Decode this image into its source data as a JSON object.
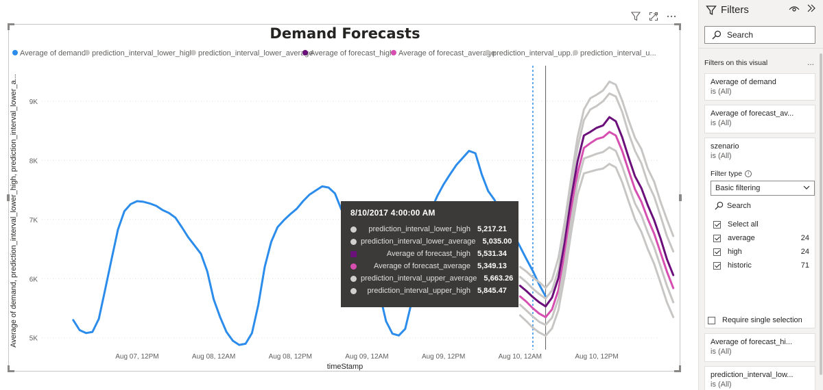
{
  "visual_header": {
    "filter_icon": "filter-icon",
    "focus_icon": "focus-mode-icon",
    "more_icon": "more-options-icon"
  },
  "chart_data": {
    "type": "line",
    "title": "Demand Forecasts",
    "xlabel": "timeStamp",
    "ylabel": "Average of demand, prediction_interval_lower_high, prediction_interval_lower_a...",
    "ylim": [
      4800,
      9600
    ],
    "y_ticks": [
      5000,
      6000,
      7000,
      8000,
      9000
    ],
    "y_tick_labels": [
      "5K",
      "6K",
      "7K",
      "8K",
      "9K"
    ],
    "x_tick_hours": [
      36,
      48,
      60,
      72,
      84,
      96,
      108
    ],
    "x_tick_labels": [
      "Aug 07, 12PM",
      "Aug 08, 12AM",
      "Aug 08, 12PM",
      "Aug 09, 12AM",
      "Aug 09, 12PM",
      "Aug 10, 12AM",
      "Aug 10, 12PM"
    ],
    "xlim_hours": [
      20,
      121
    ],
    "forecast_start_hour": 98,
    "hover_hour": 100,
    "legend": [
      {
        "name": "Average of demand",
        "color": "#2b8ceb"
      },
      {
        "name": "prediction_interval_lower_high",
        "color": "#c8c6c4"
      },
      {
        "name": "prediction_interval_lower_average",
        "color": "#c8c6c4"
      },
      {
        "name": "Average of forecast_high",
        "color": "#6b0f7a"
      },
      {
        "name": "Average of forecast_average",
        "color": "#d64fb0"
      },
      {
        "name": "prediction_interval_upp...",
        "color": "#c8c6c4"
      },
      {
        "name": "prediction_interval_u...",
        "color": "#c8c6c4"
      }
    ],
    "series": [
      {
        "name": "Average of demand",
        "color": "#2b8ceb",
        "width": 3,
        "x": [
          26,
          27,
          28,
          29,
          30,
          31,
          32,
          33,
          34,
          35,
          36,
          37,
          38,
          39,
          40,
          41,
          42,
          43,
          44,
          45,
          46,
          47,
          48,
          49,
          50,
          51,
          52,
          53,
          54,
          55,
          56,
          57,
          58,
          59,
          60,
          61,
          62,
          63,
          64,
          65,
          66,
          67,
          68,
          69,
          70,
          71,
          72,
          73,
          74,
          75,
          76,
          77,
          78,
          79,
          80,
          81,
          82,
          83,
          84,
          85,
          86,
          87,
          88,
          89,
          90,
          91,
          92,
          93,
          94,
          95,
          96,
          97,
          98,
          99,
          100
        ],
        "y": [
          5300,
          5130,
          5080,
          5100,
          5320,
          5820,
          6330,
          6830,
          7140,
          7260,
          7310,
          7300,
          7270,
          7230,
          7160,
          7110,
          7030,
          6870,
          6700,
          6560,
          6420,
          6120,
          5650,
          5350,
          5100,
          4950,
          4880,
          4900,
          5080,
          5560,
          6200,
          6620,
          6870,
          6990,
          7090,
          7180,
          7310,
          7420,
          7490,
          7560,
          7540,
          7440,
          7170,
          7000,
          6870,
          6680,
          6420,
          6140,
          5740,
          5280,
          5070,
          5040,
          5150,
          5600,
          6340,
          6850,
          7140,
          7390,
          7590,
          7760,
          7920,
          8040,
          8160,
          8120,
          7760,
          7480,
          7330,
          7130,
          6960,
          6750,
          6540,
          6330,
          6130,
          5900,
          5700
        ]
      },
      {
        "name": "prediction_interval_upper_high",
        "color": "#c8c6c4",
        "width": 3,
        "x": [
          96,
          97,
          98,
          99,
          100,
          101,
          102,
          103,
          104,
          105,
          106,
          107,
          108,
          109,
          110,
          111,
          112,
          113,
          114,
          115,
          116,
          117,
          118,
          119,
          120
        ],
        "y": [
          6200,
          6120,
          6020,
          5940,
          5845,
          5980,
          6350,
          6960,
          7700,
          8390,
          8860,
          9050,
          9110,
          9180,
          9330,
          9280,
          9010,
          8680,
          8380,
          8190,
          7860,
          7640,
          7300,
          7000,
          6720
        ]
      },
      {
        "name": "prediction_interval_upper_average",
        "color": "#c8c6c4",
        "width": 3,
        "x": [
          96,
          97,
          98,
          99,
          100,
          101,
          102,
          103,
          104,
          105,
          106,
          107,
          108,
          109,
          110,
          111,
          112,
          113,
          114,
          115,
          116,
          117,
          118,
          119,
          120
        ],
        "y": [
          6030,
          5940,
          5830,
          5740,
          5663,
          5800,
          6150,
          6760,
          7520,
          8210,
          8680,
          8860,
          8920,
          9000,
          9130,
          9080,
          8820,
          8460,
          8160,
          7950,
          7620,
          7390,
          7060,
          6720,
          6460
        ]
      },
      {
        "name": "Average of forecast_high",
        "color": "#6b0f7a",
        "width": 3,
        "x": [
          96,
          97,
          98,
          99,
          100,
          101,
          102,
          103,
          104,
          105,
          106,
          107,
          108,
          109,
          110,
          111,
          112,
          113,
          114,
          115,
          116,
          117,
          118,
          119,
          120
        ],
        "y": [
          5880,
          5790,
          5690,
          5600,
          5531,
          5680,
          6010,
          6620,
          7360,
          7980,
          8420,
          8480,
          8550,
          8590,
          8730,
          8660,
          8390,
          8050,
          7730,
          7530,
          7240,
          6990,
          6680,
          6330,
          6060
        ]
      },
      {
        "name": "Average of forecast_average",
        "color": "#d64fb0",
        "width": 3,
        "x": [
          96,
          97,
          98,
          99,
          100,
          101,
          102,
          103,
          104,
          105,
          106,
          107,
          108,
          109,
          110,
          111,
          112,
          113,
          114,
          115,
          116,
          117,
          118,
          119,
          120
        ],
        "y": [
          5700,
          5610,
          5500,
          5410,
          5349,
          5480,
          5810,
          6420,
          7150,
          7780,
          8210,
          8290,
          8360,
          8390,
          8480,
          8420,
          8160,
          7830,
          7510,
          7300,
          7010,
          6760,
          6440,
          6120,
          5840
        ]
      },
      {
        "name": "prediction_interval_lower_high",
        "color": "#c8c6c4",
        "width": 3,
        "x": [
          96,
          97,
          98,
          99,
          100,
          101,
          102,
          103,
          104,
          105,
          106,
          107,
          108,
          109,
          110,
          111,
          112,
          113,
          114,
          115,
          116,
          117,
          118,
          119,
          120
        ],
        "y": [
          5560,
          5460,
          5360,
          5270,
          5217,
          5340,
          5660,
          6260,
          6980,
          7620,
          8030,
          8070,
          8110,
          8140,
          8220,
          8160,
          7900,
          7580,
          7270,
          7070,
          6780,
          6530,
          6210,
          5880,
          5600
        ]
      },
      {
        "name": "prediction_interval_lower_average",
        "color": "#c8c6c4",
        "width": 3,
        "x": [
          96,
          97,
          98,
          99,
          100,
          101,
          102,
          103,
          104,
          105,
          106,
          107,
          108,
          109,
          110,
          111,
          112,
          113,
          114,
          115,
          116,
          117,
          118,
          119,
          120
        ],
        "y": [
          5380,
          5280,
          5170,
          5090,
          5035,
          5160,
          5470,
          6060,
          6780,
          7420,
          7780,
          7810,
          7840,
          7860,
          7940,
          7880,
          7630,
          7310,
          7000,
          6790,
          6500,
          6250,
          5930,
          5600,
          5350
        ]
      }
    ]
  },
  "tooltip": {
    "title": "8/10/2017 4:00:00 AM",
    "rows": [
      {
        "name": "prediction_interval_lower_high",
        "value": "5,217.21",
        "color": "#d2d0ce",
        "shape": "circle"
      },
      {
        "name": "prediction_interval_lower_average",
        "value": "5,035.00",
        "color": "#d2d0ce",
        "shape": "circle"
      },
      {
        "name": "Average of forecast_high",
        "value": "5,531.34",
        "color": "#6b0f7a",
        "shape": "square"
      },
      {
        "name": "Average of forecast_average",
        "value": "5,349.13",
        "color": "#d64fb0",
        "shape": "circle"
      },
      {
        "name": "prediction_interval_upper_average",
        "value": "5,663.26",
        "color": "#d2d0ce",
        "shape": "circle"
      },
      {
        "name": "prediction_interval_upper_high",
        "value": "5,845.47",
        "color": "#d2d0ce",
        "shape": "circle"
      }
    ]
  },
  "filters": {
    "title": "Filters",
    "search_placeholder": "Search",
    "section_label": "Filters on this visual",
    "section_more": "...",
    "cards": [
      {
        "name": "Average of demand",
        "value": "is (All)"
      },
      {
        "name": "Average of forecast_av...",
        "value": "is (All)"
      }
    ],
    "expanded": {
      "name": "szenario",
      "value": "is (All)",
      "filter_type_label": "Filter type",
      "filter_type_value": "Basic filtering",
      "search_placeholder": "Search",
      "select_all": "Select all",
      "options": [
        {
          "label": "average",
          "count": "24"
        },
        {
          "label": "high",
          "count": "24"
        },
        {
          "label": "historic",
          "count": "71"
        }
      ],
      "require_single": "Require single selection"
    },
    "cards_bottom": [
      {
        "name": "Average of forecast_hi...",
        "value": "is (All)"
      },
      {
        "name": "prediction_interval_low...",
        "value": "is (All)"
      }
    ]
  }
}
